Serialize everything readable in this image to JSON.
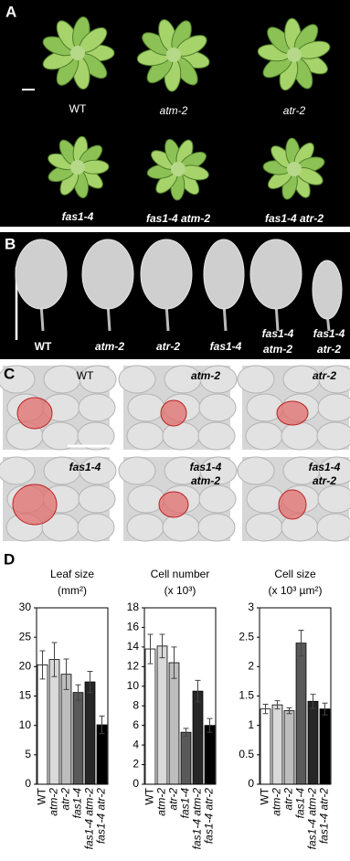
{
  "panels": {
    "a": "A",
    "b": "B",
    "c": "C",
    "d": "D"
  },
  "rosettes": [
    "WT",
    "atm-2",
    "atr-2",
    "fas1-4",
    "fas1-4 atm-2",
    "fas1-4 atr-2"
  ],
  "leaves": [
    [
      "WT"
    ],
    [
      "atm-2"
    ],
    [
      "atr-2"
    ],
    [
      "fas1-4"
    ],
    [
      "fas1-4",
      "atm-2"
    ],
    [
      "fas1-4",
      "atr-2"
    ]
  ],
  "cells": [
    [
      "WT"
    ],
    [
      "atm-2"
    ],
    [
      "atr-2"
    ],
    [
      "fas1-4"
    ],
    [
      "fas1-4",
      "atm-2"
    ],
    [
      "fas1-4",
      "atr-2"
    ]
  ],
  "chart_data": [
    {
      "type": "bar",
      "title": "Leaf size",
      "unit": "(mm²)",
      "categories": [
        "WT",
        "atm-2",
        "atr-2",
        "fas1-4",
        "fas1-4 atm-2",
        "fas1-4 atr-2"
      ],
      "values": [
        20.3,
        21.2,
        18.7,
        15.6,
        17.4,
        10.1
      ],
      "errors": [
        2.4,
        2.9,
        2.6,
        1.3,
        1.8,
        1.5
      ],
      "colors": [
        "#ffffff",
        "#d9d9d9",
        "#bdbdbd",
        "#595959",
        "#262626",
        "#000000"
      ],
      "ylim": [
        0,
        30
      ],
      "yticks": [
        0,
        5,
        10,
        15,
        20,
        25,
        30
      ]
    },
    {
      "type": "bar",
      "title": "Cell number",
      "unit": "(x 10³)",
      "categories": [
        "WT",
        "atm-2",
        "atr-2",
        "fas1-4",
        "fas1-4 atm-2",
        "fas1-4 atr-2"
      ],
      "values": [
        13.8,
        14.1,
        12.4,
        5.3,
        9.5,
        6.0
      ],
      "errors": [
        1.5,
        1.2,
        1.6,
        0.4,
        1.1,
        0.7
      ],
      "colors": [
        "#ffffff",
        "#d9d9d9",
        "#bdbdbd",
        "#595959",
        "#262626",
        "#000000"
      ],
      "ylim": [
        0,
        18
      ],
      "yticks": [
        0,
        2,
        4,
        6,
        8,
        10,
        12,
        14,
        16,
        18
      ]
    },
    {
      "type": "bar",
      "title": "Cell size",
      "unit": "(x 10³ µm²)",
      "categories": [
        "WT",
        "atm-2",
        "atr-2",
        "fas1-4",
        "fas1-4 atm-2",
        "fas1-4 atr-2"
      ],
      "values": [
        1.28,
        1.35,
        1.25,
        2.4,
        1.41,
        1.28
      ],
      "errors": [
        0.08,
        0.07,
        0.05,
        0.22,
        0.12,
        0.1
      ],
      "colors": [
        "#ffffff",
        "#d9d9d9",
        "#bdbdbd",
        "#595959",
        "#262626",
        "#000000"
      ],
      "ylim": [
        0,
        3
      ],
      "yticks": [
        0,
        0.5,
        1,
        1.5,
        2,
        2.5,
        3
      ]
    }
  ]
}
